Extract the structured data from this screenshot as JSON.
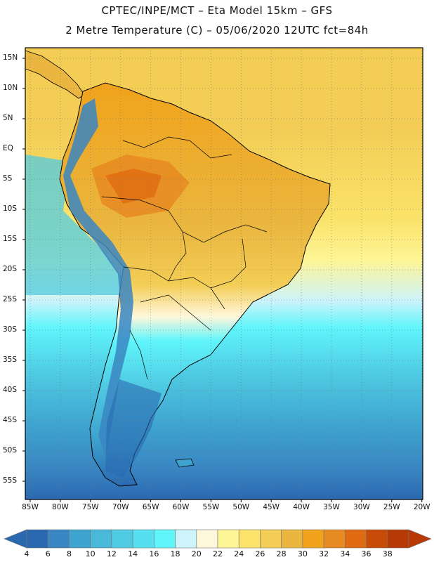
{
  "header": {
    "line1": "CPTEC/INPE/MCT –  Eta Model 15km – GFS",
    "line2": "2 Metre Temperature (C) – 05/06/2020 12UTC fct=84h"
  },
  "map": {
    "lat_labels": [
      "15N",
      "10N",
      "5N",
      "EQ",
      "5S",
      "10S",
      "15S",
      "20S",
      "25S",
      "30S",
      "35S",
      "40S",
      "45S",
      "50S",
      "55S"
    ],
    "lon_labels": [
      "85W",
      "80W",
      "75W",
      "70W",
      "65W",
      "60W",
      "55W",
      "50W",
      "45W",
      "40W",
      "35W",
      "30W",
      "25W",
      "20W"
    ]
  },
  "colorbar": {
    "labels": [
      "4",
      "6",
      "8",
      "10",
      "12",
      "14",
      "16",
      "18",
      "20",
      "22",
      "24",
      "26",
      "28",
      "30",
      "32",
      "34",
      "36",
      "38"
    ],
    "colors": [
      "#2a69b0",
      "#3a86c2",
      "#3ea3cf",
      "#49b8d9",
      "#4fcbe3",
      "#56dfee",
      "#5ff5fb",
      "#cdf3fb",
      "#fff7dc",
      "#fef596",
      "#fbe36a",
      "#f3cd55",
      "#eab63f",
      "#f0a31b",
      "#e88a22",
      "#e06b12",
      "#c94b08",
      "#b73a06"
    ]
  },
  "colors": {
    "ocean_south": "#2a69b0",
    "ocean_mid": "#4fcbe3",
    "ocean_north": "#f3cd55",
    "land_hot": "#eab63f",
    "andes": "#3a86c2"
  }
}
